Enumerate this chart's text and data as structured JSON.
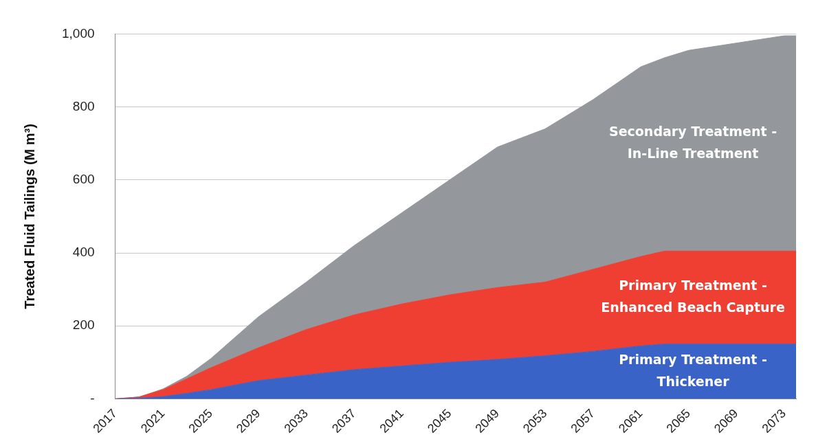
{
  "chart_data": {
    "type": "area",
    "stacked": true,
    "ylabel": "Treated Fluid Tailings (M m³)",
    "x": [
      2017,
      2019,
      2021,
      2023,
      2025,
      2029,
      2033,
      2037,
      2041,
      2045,
      2049,
      2053,
      2057,
      2061,
      2063,
      2065,
      2069,
      2073,
      2074
    ],
    "xlim": [
      2017,
      2074
    ],
    "xticks": [
      2017,
      2021,
      2025,
      2029,
      2033,
      2037,
      2041,
      2045,
      2049,
      2053,
      2057,
      2061,
      2065,
      2069,
      2073
    ],
    "ylim": [
      0,
      1000
    ],
    "yticks": [
      {
        "value": 0,
        "label": "-"
      },
      200,
      400,
      600,
      800,
      {
        "value": 1000,
        "label": "1,000"
      }
    ],
    "grid": "y",
    "legend": false,
    "series": [
      {
        "name": "Primary Treatment - Thickener",
        "color": "#3a63c8",
        "values": [
          0,
          2,
          6,
          15,
          25,
          50,
          65,
          80,
          90,
          100,
          108,
          118,
          130,
          145,
          150,
          150,
          150,
          150,
          150
        ]
      },
      {
        "name": "Primary Treatment - Enhanced Beach Capture",
        "color": "#ef3e32",
        "values": [
          0,
          3,
          19,
          40,
          60,
          90,
          125,
          150,
          170,
          185,
          197,
          202,
          225,
          245,
          255,
          255,
          255,
          255,
          255
        ]
      },
      {
        "name": "Secondary Treatment - In-Line Treatment",
        "color": "#94989d",
        "values": [
          0,
          0,
          2,
          7,
          25,
          85,
          130,
          190,
          250,
          315,
          385,
          420,
          465,
          520,
          530,
          550,
          570,
          590,
          590
        ]
      }
    ]
  }
}
